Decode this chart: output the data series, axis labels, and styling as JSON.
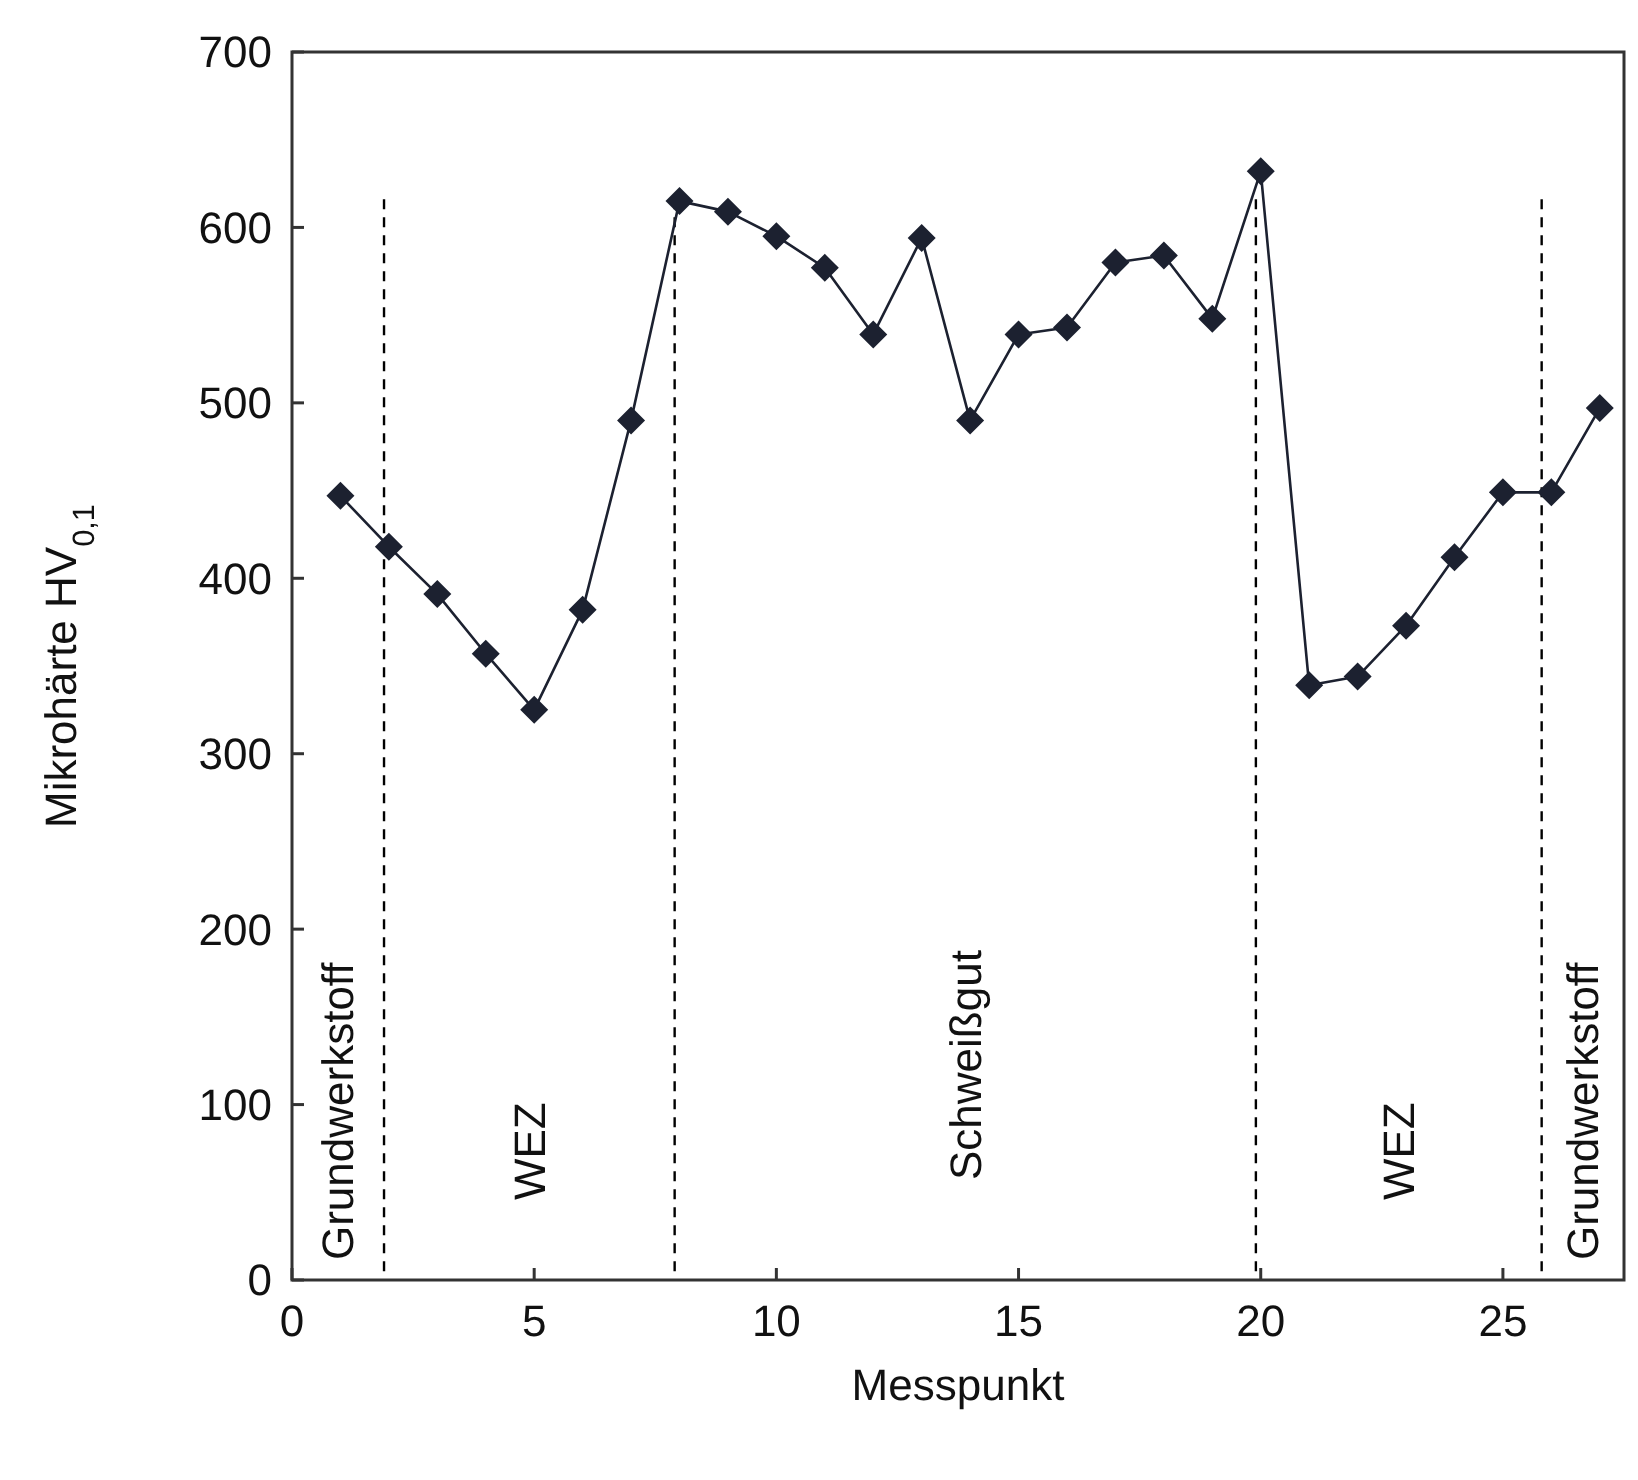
{
  "chart_data": {
    "type": "line",
    "xlabel": "Messpunkt",
    "ylabel": "Mikrohärte HV$_{0,1}$",
    "x": [
      1,
      2,
      3,
      4,
      5,
      6,
      7,
      8,
      9,
      10,
      11,
      12,
      13,
      14,
      15,
      16,
      17,
      18,
      19,
      20,
      21,
      22,
      23,
      24,
      25,
      26,
      27
    ],
    "series": [
      {
        "color": "#1c2130",
        "values": [
          447,
          418,
          391,
          357,
          325,
          382,
          490,
          615,
          609,
          595,
          577,
          539,
          594,
          490,
          539,
          543,
          580,
          584,
          548,
          632,
          339,
          344,
          373,
          412,
          449,
          449,
          497
        ]
      }
    ],
    "xlim": [
      0,
      27.5
    ],
    "xticks": [
      0,
      5,
      10,
      15,
      20,
      25
    ],
    "ylim": [
      0,
      700
    ],
    "yticks": [
      0,
      100,
      200,
      300,
      400,
      500,
      600,
      700
    ],
    "grid": false,
    "marker": "diamond",
    "line_style": "solid",
    "ref_lines": [
      {
        "axis": "x",
        "value": 1.9,
        "line_style": "dashed",
        "color": "#000000"
      },
      {
        "axis": "x",
        "value": 7.9,
        "line_style": "dashed",
        "color": "#000000"
      },
      {
        "axis": "x",
        "value": 19.9,
        "line_style": "dashed",
        "color": "#000000"
      },
      {
        "axis": "x",
        "value": 25.8,
        "line_style": "dashed",
        "color": "#000000"
      }
    ],
    "annotations": [
      "Grundwerkstoff",
      "WEZ",
      "Schweißgut",
      "WEZ",
      "Grundwerkstoff"
    ]
  }
}
